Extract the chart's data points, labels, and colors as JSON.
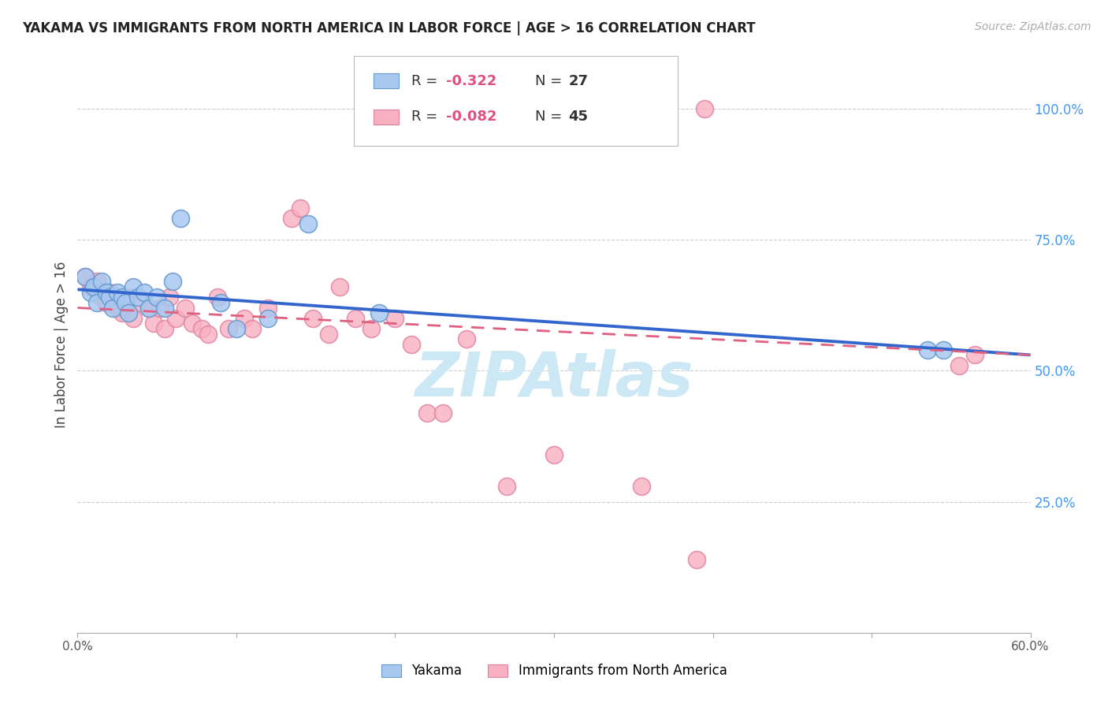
{
  "title": "YAKAMA VS IMMIGRANTS FROM NORTH AMERICA IN LABOR FORCE | AGE > 16 CORRELATION CHART",
  "source": "Source: ZipAtlas.com",
  "ylabel": "In Labor Force | Age > 16",
  "xlim": [
    0.0,
    0.6
  ],
  "ylim": [
    0.0,
    1.1
  ],
  "y_ticks_right": [
    0.25,
    0.5,
    0.75,
    1.0
  ],
  "y_tick_labels_right": [
    "25.0%",
    "50.0%",
    "75.0%",
    "100.0%"
  ],
  "grid_color": "#cccccc",
  "background_color": "#ffffff",
  "watermark_text": "ZIPAtlas",
  "watermark_color": "#cce8f4",
  "legend_R1": "-0.322",
  "legend_N1": "27",
  "legend_R2": "-0.082",
  "legend_N2": "45",
  "yakama_color": "#a8c8f0",
  "yakama_edge_color": "#6699cc",
  "immigrants_color": "#f8b0c0",
  "immigrants_edge_color": "#e080a0",
  "trend_yakama_color": "#3366cc",
  "trend_immigrants_color": "#e06080",
  "yakama_points_x": [
    0.005,
    0.008,
    0.01,
    0.012,
    0.015,
    0.018,
    0.02,
    0.022,
    0.025,
    0.028,
    0.03,
    0.032,
    0.035,
    0.038,
    0.042,
    0.045,
    0.05,
    0.055,
    0.06,
    0.065,
    0.09,
    0.1,
    0.12,
    0.145,
    0.19,
    0.535,
    0.545
  ],
  "yakama_points_y": [
    0.68,
    0.65,
    0.66,
    0.63,
    0.67,
    0.65,
    0.64,
    0.62,
    0.65,
    0.64,
    0.63,
    0.61,
    0.66,
    0.64,
    0.65,
    0.62,
    0.64,
    0.62,
    0.67,
    0.79,
    0.63,
    0.58,
    0.6,
    0.78,
    0.61,
    0.54,
    0.54
  ],
  "immigrants_points_x": [
    0.005,
    0.008,
    0.012,
    0.015,
    0.018,
    0.02,
    0.025,
    0.028,
    0.032,
    0.035,
    0.04,
    0.045,
    0.048,
    0.052,
    0.055,
    0.058,
    0.062,
    0.068,
    0.072,
    0.078,
    0.082,
    0.088,
    0.095,
    0.105,
    0.11,
    0.12,
    0.135,
    0.14,
    0.148,
    0.158,
    0.165,
    0.175,
    0.185,
    0.2,
    0.21,
    0.22,
    0.23,
    0.245,
    0.27,
    0.3,
    0.355,
    0.39,
    0.395,
    0.555,
    0.565
  ],
  "immigrants_points_y": [
    0.68,
    0.66,
    0.67,
    0.64,
    0.63,
    0.65,
    0.62,
    0.61,
    0.64,
    0.6,
    0.63,
    0.62,
    0.59,
    0.62,
    0.58,
    0.64,
    0.6,
    0.62,
    0.59,
    0.58,
    0.57,
    0.64,
    0.58,
    0.6,
    0.58,
    0.62,
    0.79,
    0.81,
    0.6,
    0.57,
    0.66,
    0.6,
    0.58,
    0.6,
    0.55,
    0.42,
    0.42,
    0.56,
    0.28,
    0.34,
    0.28,
    0.14,
    1.0,
    0.51,
    0.53
  ]
}
